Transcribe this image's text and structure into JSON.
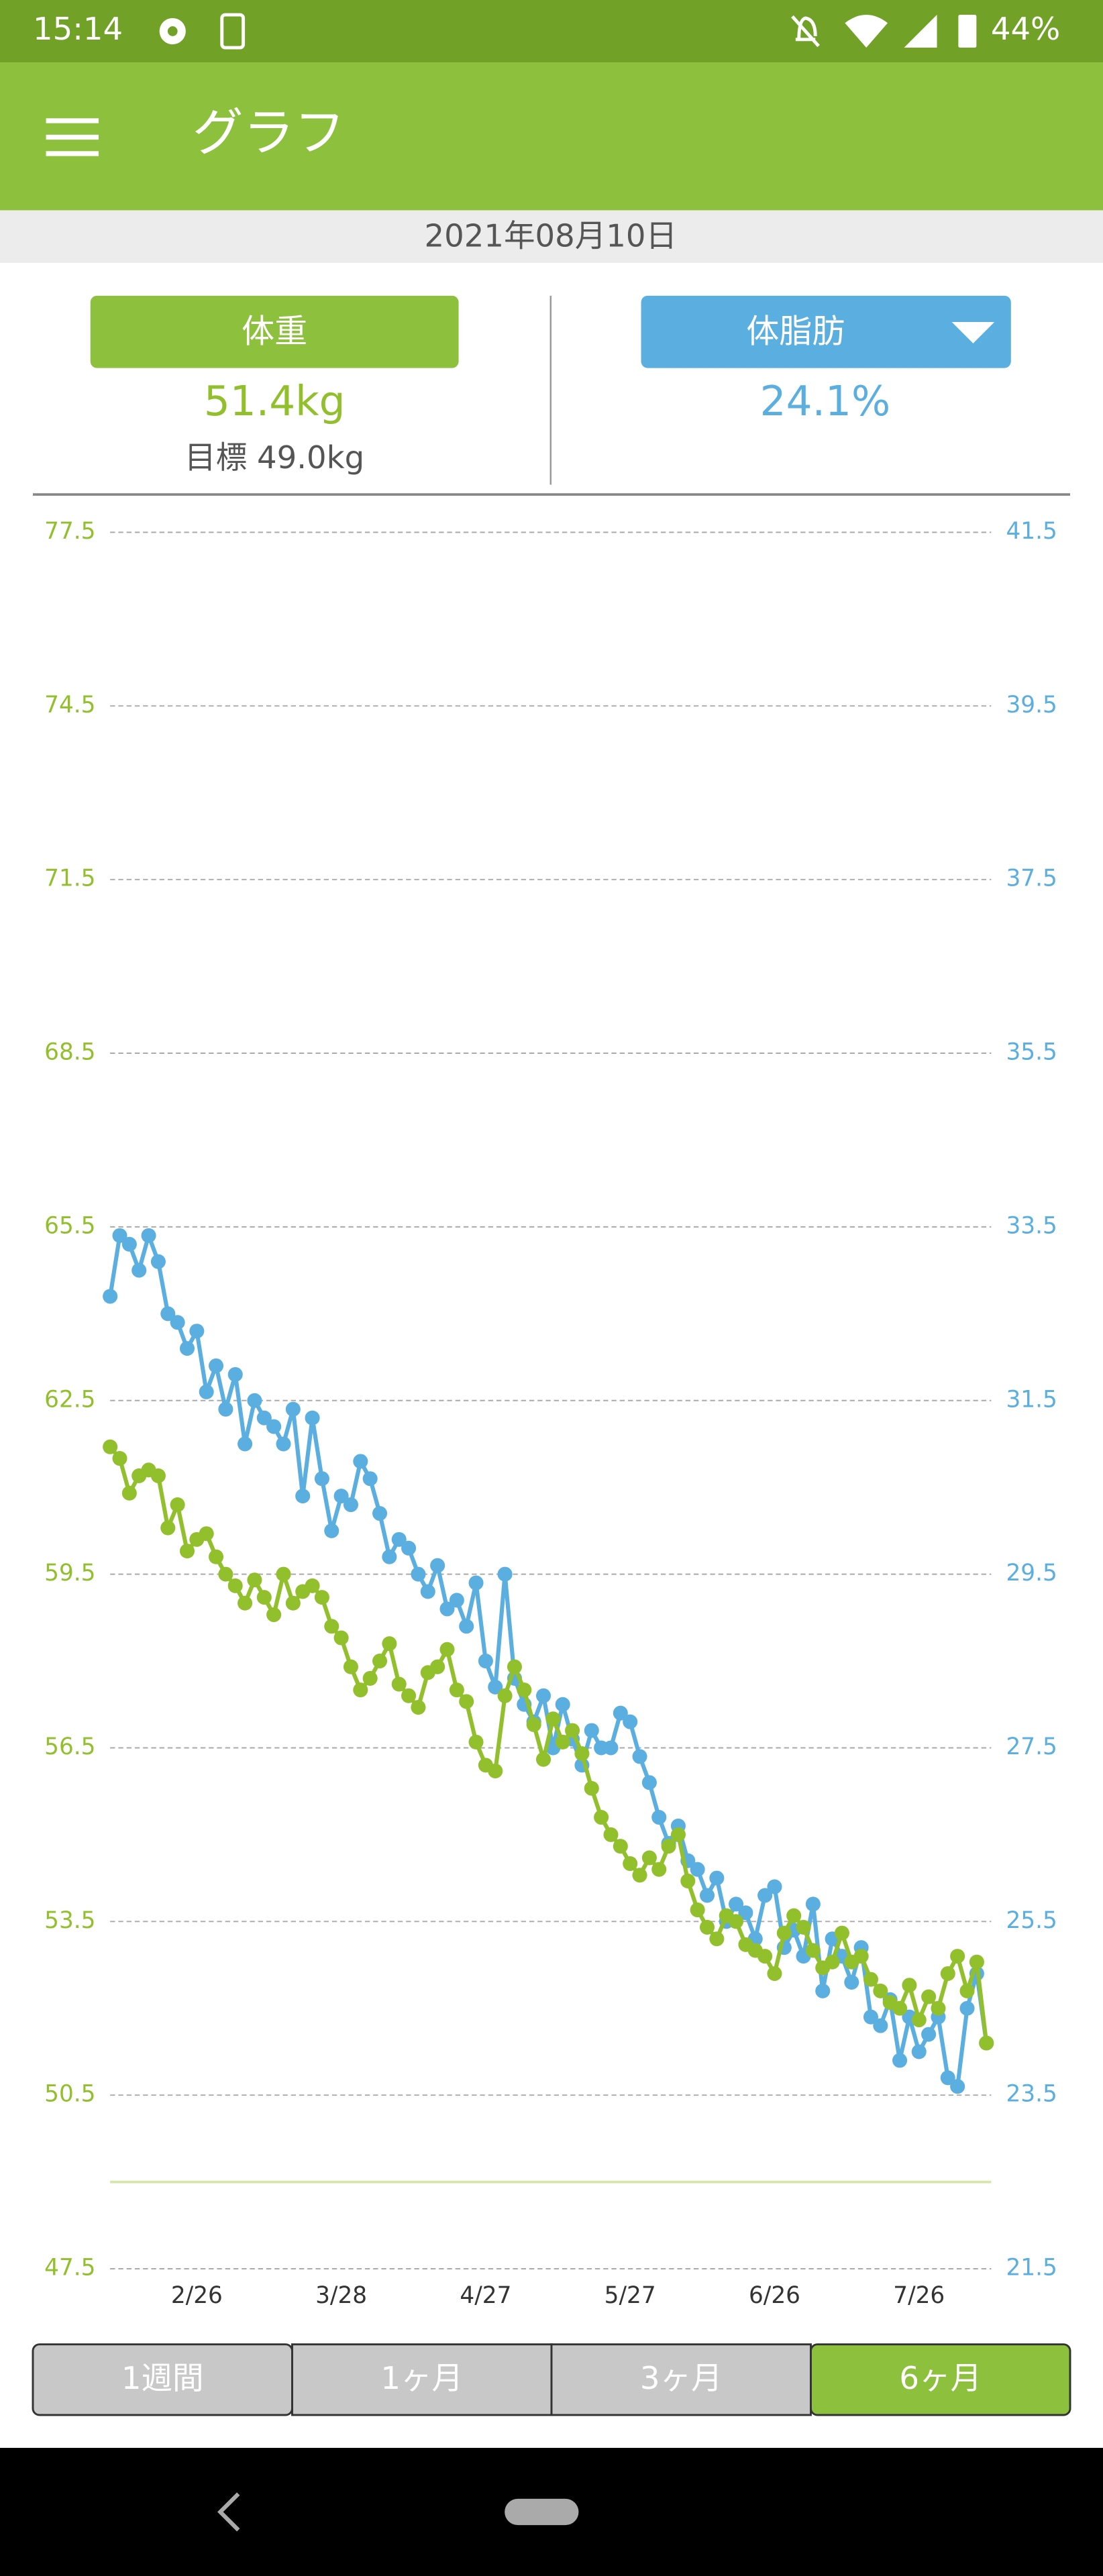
{
  "status_bar": {
    "time": "15:14",
    "battery": "44%"
  },
  "app_bar": {
    "title": "グラフ"
  },
  "date": "2021年08月10日",
  "weight_panel": {
    "value": "51.4kg",
    "goal": "目標 49.0kg"
  },
  "fat_panel": {
    "value": "24.1%"
  },
  "chart_data": {
    "type": "line",
    "x": [
      "2/8",
      "2/10",
      "2/12",
      "2/14",
      "2/16",
      "2/18",
      "2/20",
      "2/22",
      "2/24",
      "2/26",
      "2/28",
      "3/2",
      "3/4",
      "3/6",
      "3/8",
      "3/10",
      "3/12",
      "3/14",
      "3/16",
      "3/18",
      "3/20",
      "3/22",
      "3/24",
      "3/26",
      "3/28",
      "3/30",
      "4/1",
      "4/3",
      "4/5",
      "4/7",
      "4/9",
      "4/11",
      "4/13",
      "4/15",
      "4/17",
      "4/19",
      "4/21",
      "4/23",
      "4/25",
      "4/27",
      "4/29",
      "5/1",
      "5/3",
      "5/5",
      "5/7",
      "5/9",
      "5/11",
      "5/13",
      "5/15",
      "5/17",
      "5/19",
      "5/21",
      "5/23",
      "5/25",
      "5/27",
      "5/29",
      "5/31",
      "6/2",
      "6/4",
      "6/6",
      "6/8",
      "6/10",
      "6/12",
      "6/14",
      "6/16",
      "6/18",
      "6/20",
      "6/22",
      "6/24",
      "6/26",
      "6/28",
      "6/30",
      "7/2",
      "7/4",
      "7/6",
      "7/8",
      "7/10",
      "7/12",
      "7/14",
      "7/16",
      "7/18",
      "7/20",
      "7/22",
      "7/24",
      "7/26",
      "7/28",
      "7/30",
      "8/1",
      "8/3",
      "8/5",
      "8/7",
      "8/9"
    ],
    "xlim": [
      "2/8",
      "8/10"
    ],
    "xticks": [
      "2/26",
      "3/28",
      "4/27",
      "5/27",
      "6/26",
      "7/26"
    ],
    "ylim": [
      47.5,
      77.5
    ],
    "yticks": [
      47.5,
      50.5,
      53.5,
      56.5,
      59.5,
      62.5,
      65.5,
      68.5,
      71.5,
      74.5,
      77.5
    ],
    "y2lim": [
      21.5,
      41.5
    ],
    "y2ticks": [
      21.5,
      23.5,
      25.5,
      27.5,
      29.5,
      31.5,
      33.5,
      35.5,
      37.5,
      39.5,
      41.5
    ],
    "grid": true,
    "goal_line": 49.0,
    "goal_color": "#d4e6a8",
    "series": [
      {
        "name": "体重",
        "color": "#92bf2c",
        "values": [
          61.7,
          61.5,
          60.9,
          61.2,
          61.3,
          61.2,
          60.3,
          60.7,
          59.9,
          60.1,
          60.2,
          59.8,
          59.5,
          59.3,
          59.0,
          59.4,
          59.1,
          58.8,
          59.5,
          59.0,
          59.2,
          59.3,
          59.1,
          58.6,
          58.4,
          57.9,
          57.5,
          57.7,
          58.0,
          58.3,
          57.6,
          57.4,
          57.2,
          57.8,
          57.9,
          58.2,
          57.5,
          57.3,
          56.6,
          56.2,
          56.1,
          57.4,
          57.9,
          57.5,
          56.9,
          56.3,
          57.0,
          56.6,
          56.8,
          56.4,
          55.8,
          55.3,
          55.0,
          54.8,
          54.5,
          54.3,
          54.6,
          54.4,
          54.8,
          55.0,
          54.2,
          53.7,
          53.4,
          53.2,
          53.6,
          53.5,
          53.1,
          53.0,
          52.9,
          52.6,
          53.3,
          53.6,
          53.4,
          53.0,
          52.7,
          52.8,
          53.3,
          52.8,
          52.9,
          52.5,
          52.3,
          52.1,
          52.0,
          52.4,
          51.8,
          52.2,
          52.0,
          52.6,
          52.9,
          52.3,
          52.8,
          51.4
        ]
      },
      {
        "name": "体脂肪",
        "color": "#5aaee0",
        "axis": "y2",
        "values": [
          32.7,
          33.4,
          33.3,
          33.0,
          33.4,
          33.1,
          32.5,
          32.4,
          32.1,
          32.3,
          31.6,
          31.9,
          31.4,
          31.8,
          31.0,
          31.5,
          31.3,
          31.2,
          31.0,
          31.4,
          30.4,
          31.3,
          30.6,
          30.0,
          30.4,
          30.3,
          30.8,
          30.6,
          30.2,
          29.7,
          29.9,
          29.8,
          29.5,
          29.3,
          29.6,
          29.1,
          29.2,
          28.9,
          29.4,
          28.5,
          28.2,
          29.5,
          28.3,
          28.0,
          27.8,
          28.1,
          27.5,
          28.0,
          27.6,
          27.3,
          27.7,
          27.5,
          27.5,
          27.9,
          27.8,
          27.4,
          27.1,
          26.7,
          26.4,
          26.6,
          26.2,
          26.1,
          25.8,
          26.0,
          25.5,
          25.7,
          25.6,
          25.3,
          25.8,
          25.9,
          25.2,
          25.4,
          25.1,
          25.7,
          24.7,
          25.3,
          25.1,
          24.8,
          25.2,
          24.4,
          24.3,
          24.6,
          23.9,
          24.4,
          24.0,
          24.2,
          24.4,
          23.7,
          23.6,
          24.5,
          24.9,
          24.1
        ]
      }
    ]
  },
  "tabs": [
    "1週間",
    "1ヶ月",
    "3ヶ月",
    "6ヶ月"
  ],
  "selected_tab": 3
}
